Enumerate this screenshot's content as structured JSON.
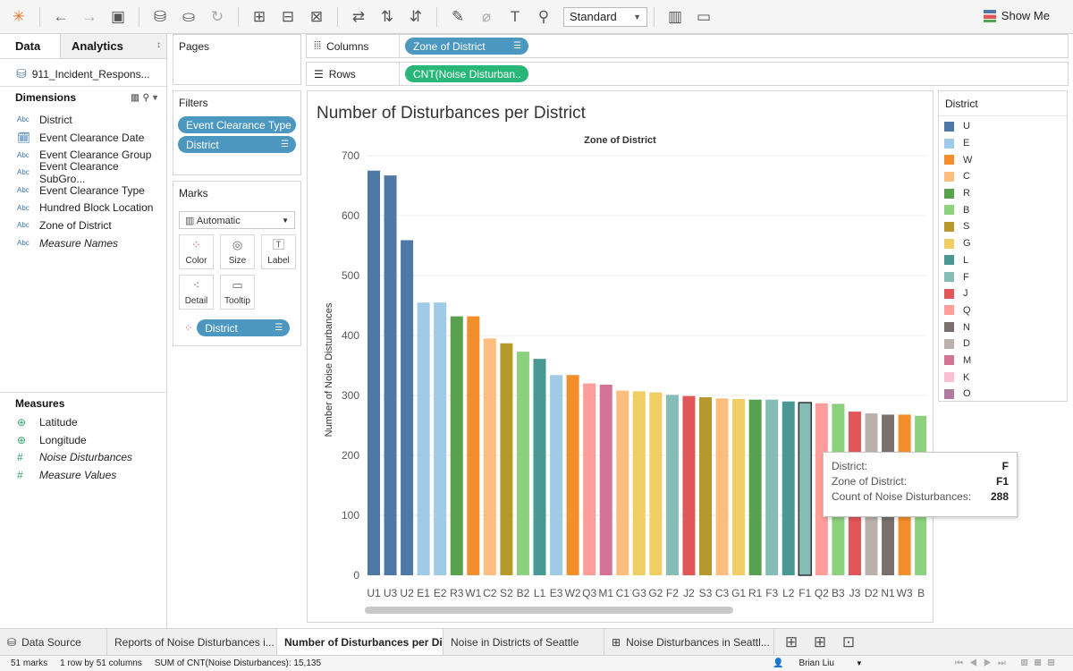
{
  "toolbar": {
    "view_size": "Standard",
    "show_me": "Show Me"
  },
  "data_pane": {
    "tab_data": "Data",
    "tab_analytics": "Analytics",
    "source": "911_Incident_Respons...",
    "dimensions_label": "Dimensions",
    "dimensions": [
      {
        "type": "Abc",
        "name": "District",
        "italic": false
      },
      {
        "type": "date",
        "name": "Event Clearance Date",
        "italic": false
      },
      {
        "type": "Abc",
        "name": "Event Clearance Group",
        "italic": false
      },
      {
        "type": "Abc",
        "name": "Event Clearance SubGro...",
        "italic": false
      },
      {
        "type": "Abc",
        "name": "Event Clearance Type",
        "italic": false
      },
      {
        "type": "Abc",
        "name": "Hundred Block Location",
        "italic": false
      },
      {
        "type": "Abc",
        "name": "Zone of District",
        "italic": false
      },
      {
        "type": "Abc",
        "name": "Measure Names",
        "italic": true
      }
    ],
    "measures_label": "Measures",
    "measures": [
      {
        "type": "geo",
        "name": "Latitude",
        "italic": false
      },
      {
        "type": "geo",
        "name": "Longitude",
        "italic": false
      },
      {
        "type": "num",
        "name": "Noise Disturbances",
        "italic": true
      },
      {
        "type": "num",
        "name": "Measure Values",
        "italic": true
      }
    ]
  },
  "pages": {
    "title": "Pages"
  },
  "filters": {
    "title": "Filters",
    "items": [
      "Event Clearance Type",
      "District"
    ]
  },
  "marks": {
    "title": "Marks",
    "type": "Automatic",
    "cards": [
      "Color",
      "Size",
      "Label",
      "Detail",
      "Tooltip"
    ],
    "color_field": "District"
  },
  "shelves": {
    "columns_label": "Columns",
    "columns_pill": "Zone of District",
    "rows_label": "Rows",
    "rows_pill": "CNT(Noise Disturban.."
  },
  "view": {
    "title": "Number of Disturbances per District",
    "x_header": "Zone of District",
    "y_label": "Number of Noise Disturbances"
  },
  "legend": {
    "title": "District",
    "items": [
      {
        "label": "U",
        "color": "#4e79a7"
      },
      {
        "label": "E",
        "color": "#a0cbe8"
      },
      {
        "label": "W",
        "color": "#f28e2b"
      },
      {
        "label": "C",
        "color": "#ffbe7d"
      },
      {
        "label": "R",
        "color": "#59a14f"
      },
      {
        "label": "B",
        "color": "#8cd17d"
      },
      {
        "label": "S",
        "color": "#b6992d"
      },
      {
        "label": "G",
        "color": "#f1ce63"
      },
      {
        "label": "L",
        "color": "#499894"
      },
      {
        "label": "F",
        "color": "#86bcb6"
      },
      {
        "label": "J",
        "color": "#e15759"
      },
      {
        "label": "Q",
        "color": "#ff9d9a"
      },
      {
        "label": "N",
        "color": "#79706e"
      },
      {
        "label": "D",
        "color": "#bab0ac"
      },
      {
        "label": "M",
        "color": "#d37295"
      },
      {
        "label": "K",
        "color": "#fabfd2"
      },
      {
        "label": "O",
        "color": "#b07aa1"
      }
    ]
  },
  "tooltip": {
    "rows": [
      {
        "key": "District:",
        "value": "F"
      },
      {
        "key": "Zone of District:",
        "value": "F1"
      },
      {
        "key": "Count of Noise Disturbances:",
        "value": "288"
      }
    ]
  },
  "chart_data": {
    "type": "bar",
    "title": "Number of Disturbances per District",
    "xlabel": "Zone of District",
    "ylabel": "Number of Noise Disturbances",
    "ylim": [
      0,
      700
    ],
    "yticks": [
      0,
      100,
      200,
      300,
      400,
      500,
      600,
      700
    ],
    "grid": true,
    "categories": [
      "U1",
      "U3",
      "U2",
      "E1",
      "E2",
      "R3",
      "W1",
      "C2",
      "S2",
      "B2",
      "L1",
      "E3",
      "W2",
      "Q3",
      "M1",
      "C1",
      "G3",
      "G2",
      "F2",
      "J2",
      "S3",
      "C3",
      "G1",
      "R1",
      "F3",
      "L2",
      "F1",
      "Q2",
      "B3",
      "J3",
      "D2",
      "N1",
      "W3",
      "B"
    ],
    "values": [
      675,
      667,
      559,
      455,
      455,
      432,
      432,
      395,
      387,
      373,
      361,
      334,
      334,
      320,
      318,
      308,
      307,
      305,
      301,
      299,
      297,
      295,
      294,
      293,
      293,
      290,
      288,
      287,
      286,
      273,
      270,
      268,
      268,
      266
    ],
    "district": [
      "U",
      "U",
      "U",
      "E",
      "E",
      "R",
      "W",
      "C",
      "S",
      "B",
      "L",
      "E",
      "W",
      "Q",
      "M",
      "C",
      "G",
      "G",
      "F",
      "J",
      "S",
      "C",
      "G",
      "R",
      "F",
      "L",
      "F",
      "Q",
      "B",
      "J",
      "D",
      "N",
      "W",
      "B"
    ]
  },
  "sheet_tabs": {
    "items": [
      "Data Source",
      "Reports of Noise Disturbances i...",
      "Number of Disturbances per Di...",
      "Noise in Districts of Seattle",
      "Noise Disturbances in Seattl..."
    ],
    "active": 2
  },
  "status": {
    "marks": "51 marks",
    "rows_cols": "1 row by 51 columns",
    "sum": "SUM of CNT(Noise Disturbances): 15,135",
    "user": "Brian Liu"
  }
}
